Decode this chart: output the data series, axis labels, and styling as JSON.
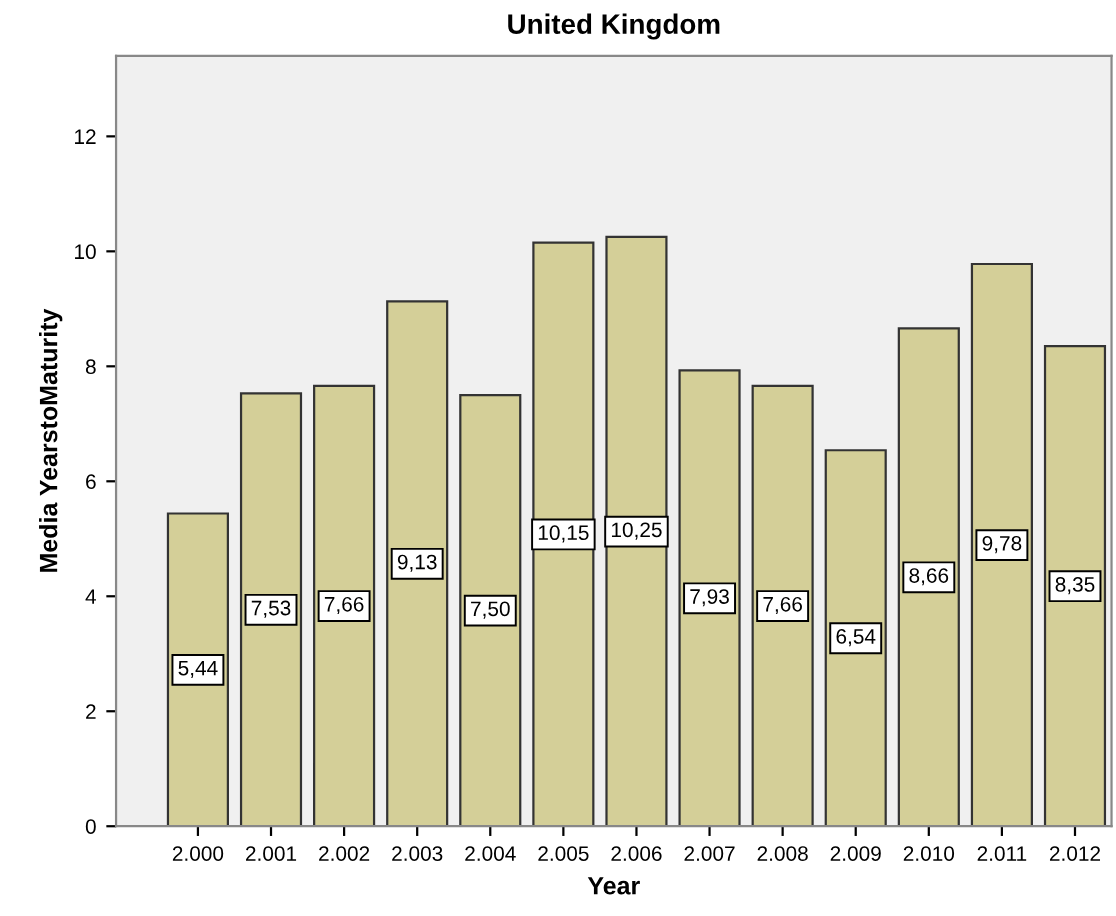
{
  "chart_data": {
    "type": "bar",
    "title": "United Kingdom",
    "xlabel": "Year",
    "ylabel": "Media YearstoMaturity",
    "categories": [
      "2.000",
      "2.001",
      "2.002",
      "2.003",
      "2.004",
      "2.005",
      "2.006",
      "2.007",
      "2.008",
      "2.009",
      "2.010",
      "2.011",
      "2.012"
    ],
    "values": [
      5.44,
      7.53,
      7.66,
      9.13,
      7.5,
      10.15,
      10.25,
      7.93,
      7.66,
      6.54,
      8.66,
      9.78,
      8.35
    ],
    "value_labels": [
      "5,44",
      "7,53",
      "7,66",
      "9,13",
      "7,50",
      "10,15",
      "10,25",
      "7,93",
      "7,66",
      "6,54",
      "8,66",
      "9,78",
      "8,35"
    ],
    "color": "#d4cf98",
    "ylim": [
      0,
      13.4
    ],
    "yticks": [
      0,
      2,
      4,
      6,
      8,
      10,
      12
    ],
    "grid": false,
    "legend": false
  }
}
